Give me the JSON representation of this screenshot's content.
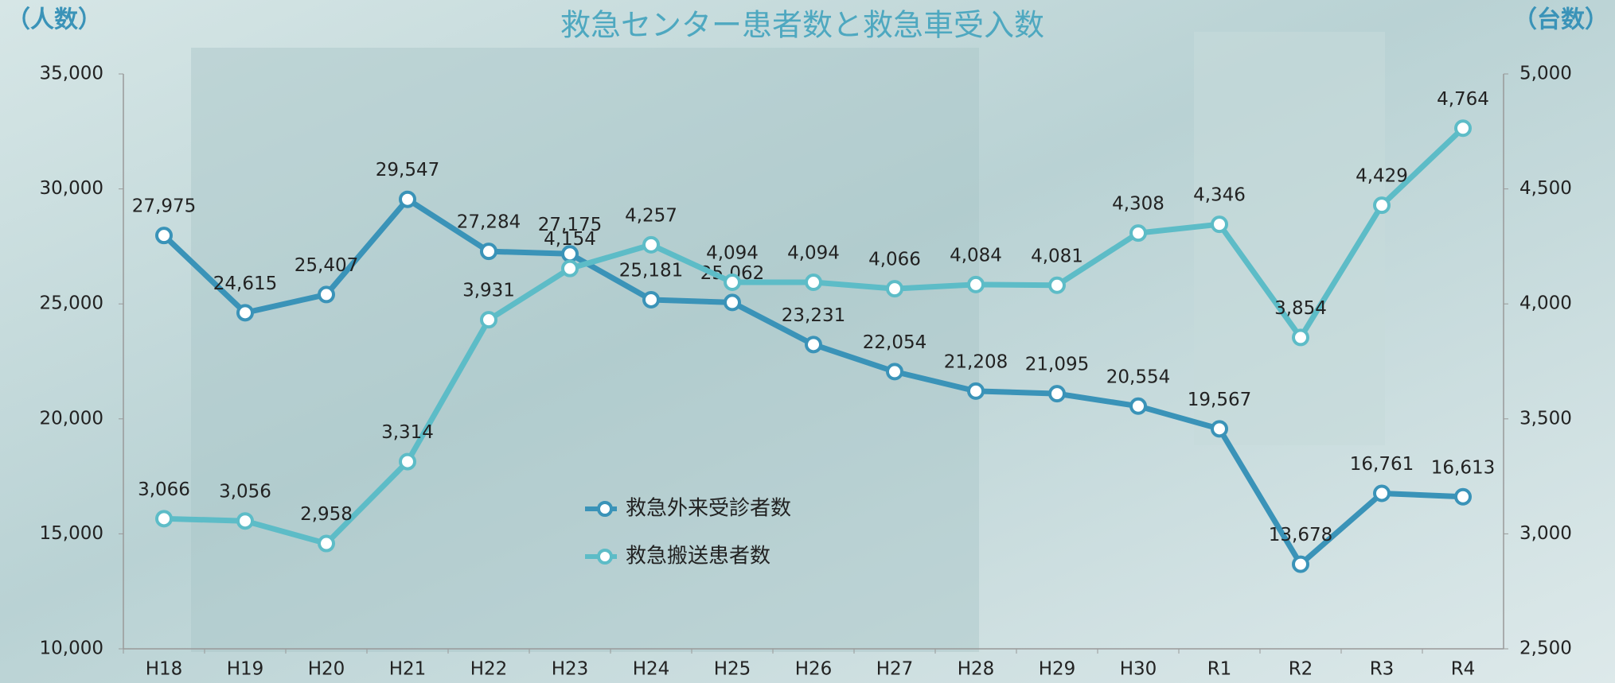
{
  "chart_data": {
    "type": "line",
    "title": "救急センター患者数と救急車受入数",
    "ylabel": "（人数）",
    "y2label": "（台数）",
    "categories": [
      "H18",
      "H19",
      "H20",
      "H21",
      "H22",
      "H23",
      "H24",
      "H25",
      "H26",
      "H27",
      "H28",
      "H29",
      "H30",
      "R1",
      "R2",
      "R3",
      "R4"
    ],
    "series": [
      {
        "name": "救急外来受診者数",
        "color": "#3a93b8",
        "axis": "y",
        "values": [
          27975,
          24615,
          25407,
          29547,
          27284,
          27175,
          25181,
          25062,
          23231,
          22054,
          21208,
          21095,
          20554,
          19567,
          13678,
          16761,
          16613
        ],
        "value_labels": [
          "27,975",
          "24,615",
          "25,407",
          "29,547",
          "27,284",
          "27,175",
          "25,181",
          "25,062",
          "23,231",
          "22,054",
          "21,208",
          "21,095",
          "20,554",
          "19,567",
          "13,678",
          "16,761",
          "16,613"
        ]
      },
      {
        "name": "救急搬送患者数",
        "color": "#5dbcc7",
        "axis": "y2",
        "values": [
          3066,
          3056,
          2958,
          3314,
          3931,
          4154,
          4257,
          4094,
          4094,
          4066,
          4084,
          4081,
          4308,
          4346,
          3854,
          4429,
          4764
        ],
        "value_labels": [
          "3,066",
          "3,056",
          "2,958",
          "3,314",
          "3,931",
          "4,154",
          "4,257",
          "4,094",
          "4,094",
          "4,066",
          "4,084",
          "4,081",
          "4,308",
          "4,346",
          "3,854",
          "4,429",
          "4,764"
        ]
      }
    ],
    "ylim": [
      10000,
      35000
    ],
    "yticks": [
      {
        "value": 10000,
        "label": "10,000"
      },
      {
        "value": 15000,
        "label": "15,000"
      },
      {
        "value": 20000,
        "label": "20,000"
      },
      {
        "value": 25000,
        "label": "25,000"
      },
      {
        "value": 30000,
        "label": "30,000"
      },
      {
        "value": 35000,
        "label": "35,000"
      }
    ],
    "y2lim": [
      2500,
      5000
    ],
    "y2ticks": [
      {
        "value": 2500,
        "label": "2,500"
      },
      {
        "value": 3000,
        "label": "3,000"
      },
      {
        "value": 3500,
        "label": "3,500"
      },
      {
        "value": 4000,
        "label": "4,000"
      },
      {
        "value": 4500,
        "label": "4,500"
      },
      {
        "value": 5000,
        "label": "5,000"
      }
    ],
    "grid": false
  }
}
